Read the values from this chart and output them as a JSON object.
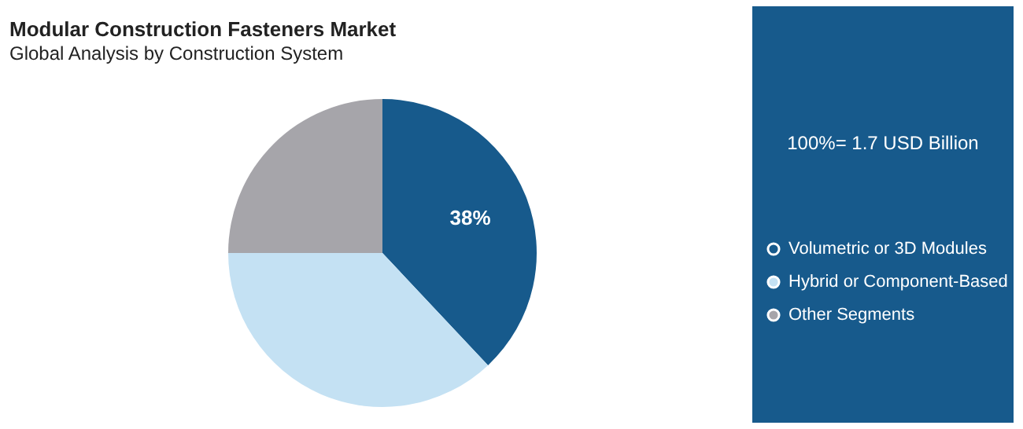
{
  "chart_data": {
    "type": "pie",
    "title": "Modular Construction Fasteners Market",
    "subtitle": "Global Analysis by Construction System",
    "categories": [
      "Volumetric or 3D Modules",
      "Hybrid or Component-Based",
      "Other Segments"
    ],
    "values": [
      38,
      37,
      25
    ],
    "colors": [
      "#175a8c",
      "#c4e1f3",
      "#a6a5aa"
    ],
    "value_labels": [
      "38%",
      null,
      null
    ],
    "legend": "right",
    "annotations": [
      "100%= 1.7 USD Billion"
    ]
  }
}
